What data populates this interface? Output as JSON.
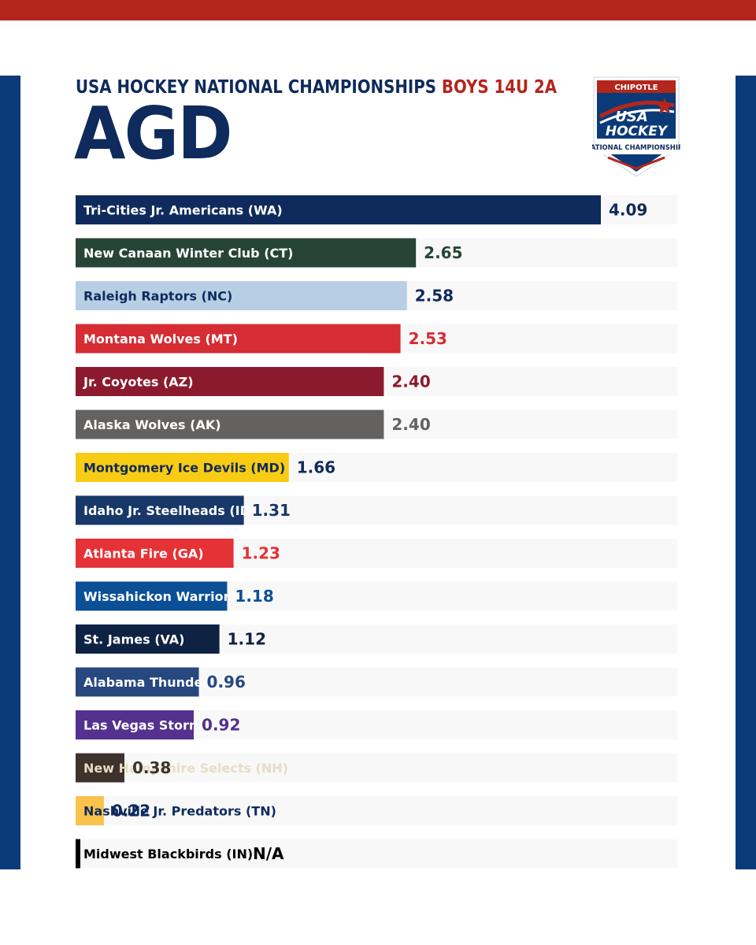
{
  "header": {
    "line_primary": "USA HOCKEY NATIONAL CHAMPIONSHIPS",
    "line_division": "BOYS 14U 2A",
    "title": "AGD"
  },
  "logo": {
    "sponsor": "CHIPOTLE",
    "brand_top": "USA",
    "brand_bottom": "HOCKEY",
    "subtitle": "NATIONAL CHAMPIONSHIPS"
  },
  "colors": {
    "accent_red": "#b3261c",
    "navy": "#0b3a78",
    "title_navy": "#0f2a5c"
  },
  "chart_data": {
    "type": "bar",
    "orientation": "horizontal",
    "title": "AGD",
    "xlim": [
      0,
      4.6
    ],
    "grid": false,
    "legend": "none",
    "categories": [
      "Tri-Cities Jr. Americans (WA)",
      "New Canaan Winter Club (CT)",
      "Raleigh Raptors (NC)",
      "Montana Wolves (MT)",
      "Jr. Coyotes (AZ)",
      "Alaska Wolves (AK)",
      "Montgomery Ice Devils (MD)",
      "Idaho Jr. Steelheads (ID)",
      "Atlanta Fire (GA)",
      "Wissahickon Warriors (PA)",
      "St. James (VA)",
      "Alabama Thunder (AL)",
      "Las Vegas Storm (NV)",
      "New Hampshire Selects (NH)",
      "Nashville Jr. Predators (TN)",
      "Midwest Blackbirds (IN)"
    ],
    "values": [
      4.09,
      2.65,
      2.58,
      2.53,
      2.4,
      2.4,
      1.66,
      1.31,
      1.23,
      1.18,
      1.12,
      0.96,
      0.92,
      0.38,
      0.22,
      null
    ],
    "value_labels": [
      "4.09",
      "2.65",
      "2.58",
      "2.53",
      "2.40",
      "2.40",
      "1.66",
      "1.31",
      "1.23",
      "1.18",
      "1.12",
      "0.96",
      "0.92",
      "0.38",
      "0.22",
      "N/A"
    ],
    "bar_colors": [
      "#0f2a5c",
      "#274536",
      "#b6cfe5",
      "#d62c33",
      "#8c1a2e",
      "#646161",
      "#f8cb14",
      "#173868",
      "#e53236",
      "#0b4f96",
      "#0e2243",
      "#27477f",
      "#54308f",
      "#3d332c",
      "#f9c24a",
      "#000000"
    ],
    "label_colors": [
      "#ffffff",
      "#ffffff",
      "#0f2a5c",
      "#ffffff",
      "#ffffff",
      "#ffffff",
      "#0f2a5c",
      "#ffffff",
      "#ffffff",
      "#ffffff",
      "#ffffff",
      "#ffffff",
      "#ffffff",
      "#e8dcc4",
      "#0f2a5c",
      "#000000"
    ],
    "value_colors": [
      "#0f2a5c",
      "#274536",
      "#0f2a5c",
      "#d62c33",
      "#8c1a2e",
      "#646161",
      "#0f2a5c",
      "#173868",
      "#e53236",
      "#0b4f96",
      "#0e2243",
      "#27477f",
      "#54308f",
      "#3d332c",
      "#0f2a5c",
      "#000000"
    ]
  }
}
